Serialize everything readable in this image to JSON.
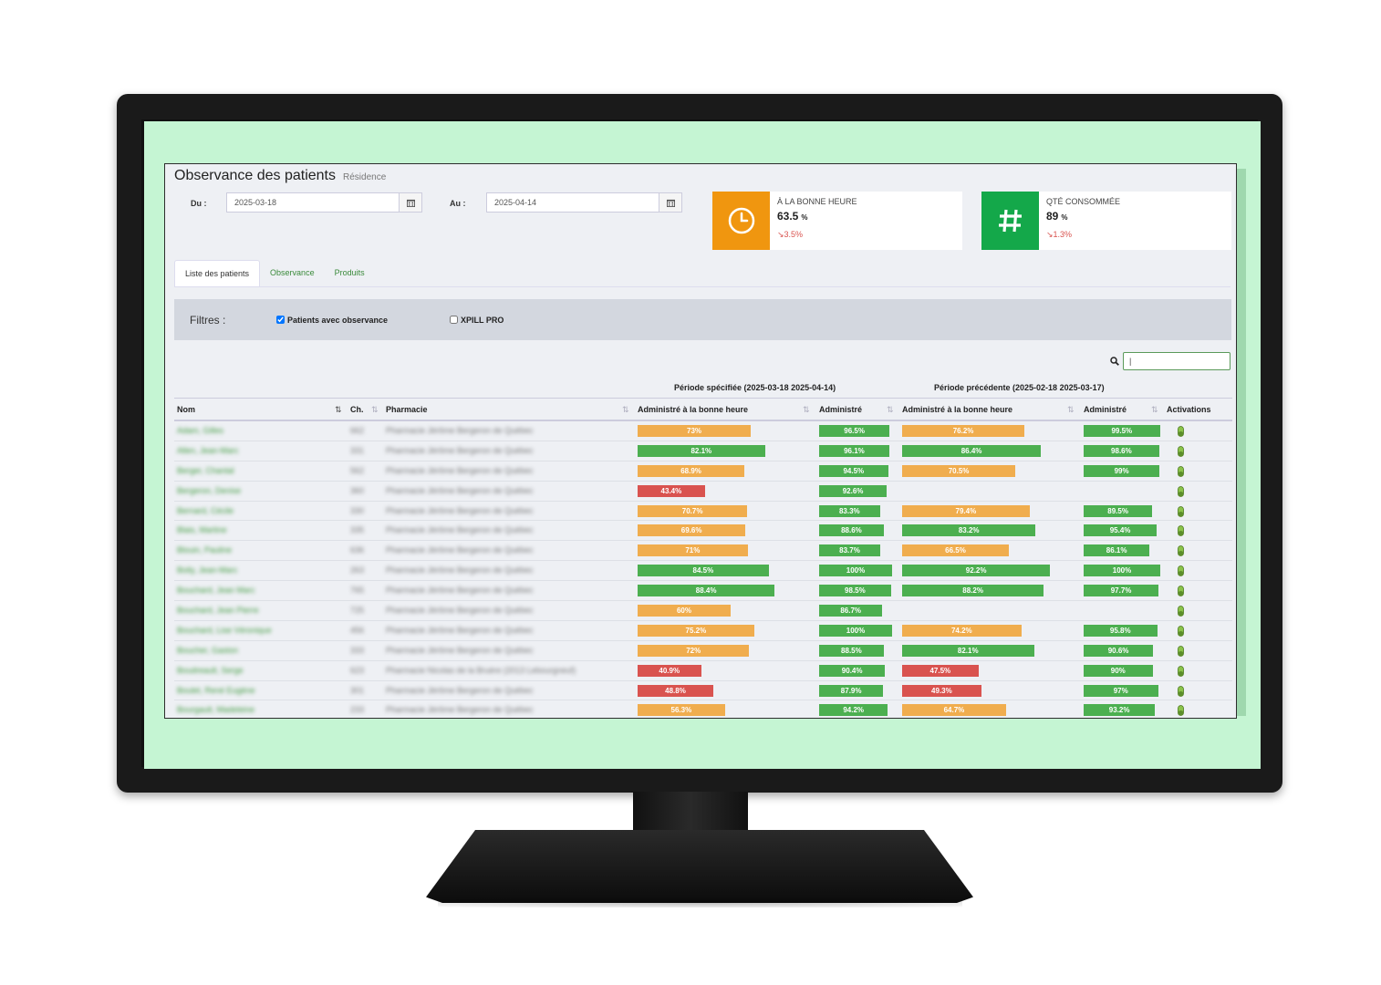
{
  "header": {
    "title": "Observance des patients",
    "subtitle": "Résidence"
  },
  "dates": {
    "from_label": "Du :",
    "from_value": "2025-03-18",
    "to_label": "Au :",
    "to_value": "2025-04-14"
  },
  "kpis": [
    {
      "label": "À LA BONNE HEURE",
      "value": "63.5",
      "unit": "%",
      "delta": "3.5%",
      "color": "#f0960f",
      "icon": "clock-icon"
    },
    {
      "label": "QTÉ CONSOMMÉE",
      "value": "89",
      "unit": "%",
      "delta": "1.3%",
      "color": "#14a84a",
      "icon": "hash-icon"
    }
  ],
  "tabs": [
    {
      "label": "Liste des patients"
    },
    {
      "label": "Observance"
    },
    {
      "label": "Produits"
    }
  ],
  "filters": {
    "label": "Filtres :",
    "patients_obs": {
      "label": "Patients avec observance",
      "checked": true
    },
    "xpill": {
      "label": "XPILL PRO",
      "checked": false
    }
  },
  "search": {
    "value": "|"
  },
  "periods": {
    "current": "Période spécifiée (2025-03-18 2025-04-14)",
    "previous": "Période précédente (2025-02-18 2025-03-17)"
  },
  "columns": [
    "Nom",
    "Ch.",
    "Pharmacie",
    "Administré à la bonne heure",
    "Administré",
    "Administré à la bonne heure",
    "Administré",
    "Activations"
  ],
  "rows": [
    {
      "name": "Adam, Gilles",
      "ch": "662",
      "pharmacie": "Pharmacie Jérôme Bergeron de Québec",
      "cur_on_time": 73,
      "cur_admin": 96.5,
      "prev_on_time": 76.2,
      "prev_admin": 99.5
    },
    {
      "name": "Allen, Jean-Marc",
      "ch": "331",
      "pharmacie": "Pharmacie Jérôme Bergeron de Québec",
      "cur_on_time": 82.1,
      "cur_admin": 96.1,
      "prev_on_time": 86.4,
      "prev_admin": 98.6
    },
    {
      "name": "Berger, Chantal",
      "ch": "562",
      "pharmacie": "Pharmacie Jérôme Bergeron de Québec",
      "cur_on_time": 68.9,
      "cur_admin": 94.5,
      "prev_on_time": 70.5,
      "prev_admin": 99
    },
    {
      "name": "Bergeron, Denise",
      "ch": "360",
      "pharmacie": "Pharmacie Jérôme Bergeron de Québec",
      "cur_on_time": 43.4,
      "cur_admin": 92.6,
      "prev_on_time": null,
      "prev_admin": null
    },
    {
      "name": "Bernard, Cécile",
      "ch": "330",
      "pharmacie": "Pharmacie Jérôme Bergeron de Québec",
      "cur_on_time": 70.7,
      "cur_admin": 83.3,
      "prev_on_time": 79.4,
      "prev_admin": 89.5
    },
    {
      "name": "Blais, Martine",
      "ch": "335",
      "pharmacie": "Pharmacie Jérôme Bergeron de Québec",
      "cur_on_time": 69.6,
      "cur_admin": 88.6,
      "prev_on_time": 83.2,
      "prev_admin": 95.4
    },
    {
      "name": "Blouin, Pauline",
      "ch": "636",
      "pharmacie": "Pharmacie Jérôme Bergeron de Québec",
      "cur_on_time": 71,
      "cur_admin": 83.7,
      "prev_on_time": 66.5,
      "prev_admin": 86.1
    },
    {
      "name": "Boily, Jean-Marc",
      "ch": "263",
      "pharmacie": "Pharmacie Jérôme Bergeron de Québec",
      "cur_on_time": 84.5,
      "cur_admin": 100,
      "prev_on_time": 92.2,
      "prev_admin": 100
    },
    {
      "name": "Bouchard, Jean Marc",
      "ch": "765",
      "pharmacie": "Pharmacie Jérôme Bergeron de Québec",
      "cur_on_time": 88.4,
      "cur_admin": 98.5,
      "prev_on_time": 88.2,
      "prev_admin": 97.7
    },
    {
      "name": "Bouchard, Jean Pierre",
      "ch": "725",
      "pharmacie": "Pharmacie Jérôme Bergeron de Québec",
      "cur_on_time": 60,
      "cur_admin": 86.7,
      "prev_on_time": null,
      "prev_admin": null
    },
    {
      "name": "Bouchard, Lise Véronique",
      "ch": "456",
      "pharmacie": "Pharmacie Jérôme Bergeron de Québec",
      "cur_on_time": 75.2,
      "cur_admin": 100,
      "prev_on_time": 74.2,
      "prev_admin": 95.8
    },
    {
      "name": "Boucher, Gaston",
      "ch": "333",
      "pharmacie": "Pharmacie Jérôme Bergeron de Québec",
      "cur_on_time": 72,
      "cur_admin": 88.5,
      "prev_on_time": 82.1,
      "prev_admin": 90.6
    },
    {
      "name": "Boudreault, Serge",
      "ch": "623",
      "pharmacie": "Pharmacie Nicolas de la Bruère (2013 Lebourgneuf)",
      "cur_on_time": 40.9,
      "cur_admin": 90.4,
      "prev_on_time": 47.5,
      "prev_admin": 90
    },
    {
      "name": "Boulet, René Eugène",
      "ch": "301",
      "pharmacie": "Pharmacie Jérôme Bergeron de Québec",
      "cur_on_time": 48.8,
      "cur_admin": 87.9,
      "prev_on_time": 49.3,
      "prev_admin": 97
    },
    {
      "name": "Bourgault, Madeleine",
      "ch": "233",
      "pharmacie": "Pharmacie Jérôme Bergeron de Québec",
      "cur_on_time": 56.3,
      "cur_admin": 94.2,
      "prev_on_time": 64.7,
      "prev_admin": 93.2
    }
  ]
}
